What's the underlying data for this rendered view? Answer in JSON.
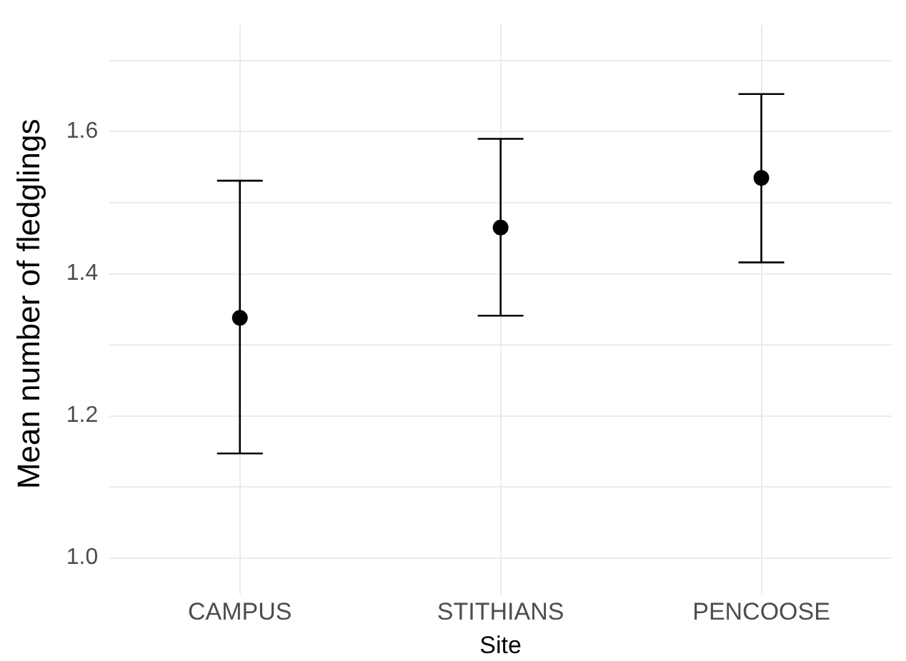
{
  "chart_data": {
    "type": "scatter",
    "xlabel": "Site",
    "ylabel": "Mean number of fledglings",
    "categories": [
      "CAMPUS",
      "STITHIANS",
      "PENCOOSE"
    ],
    "series": [
      {
        "color": "#000000",
        "values": [
          1.338,
          1.465,
          1.535
        ],
        "errors": [
          [
            1.147,
            1.531
          ],
          [
            1.341,
            1.59
          ],
          [
            1.416,
            1.653
          ]
        ]
      }
    ],
    "ylim": [
      0.965,
      1.75
    ],
    "yticks": [
      {
        "value": 1,
        "label": "1.0"
      },
      {
        "value": 1.1,
        "label": null
      },
      {
        "value": 1.2,
        "label": "1.2"
      },
      {
        "value": 1.3,
        "label": null
      },
      {
        "value": 1.4,
        "label": "1.4"
      },
      {
        "value": 1.5,
        "label": null
      },
      {
        "value": 1.6,
        "label": "1.6"
      },
      {
        "value": 1.7,
        "label": null
      }
    ],
    "grid": true,
    "legend": false,
    "marker": "circle"
  }
}
